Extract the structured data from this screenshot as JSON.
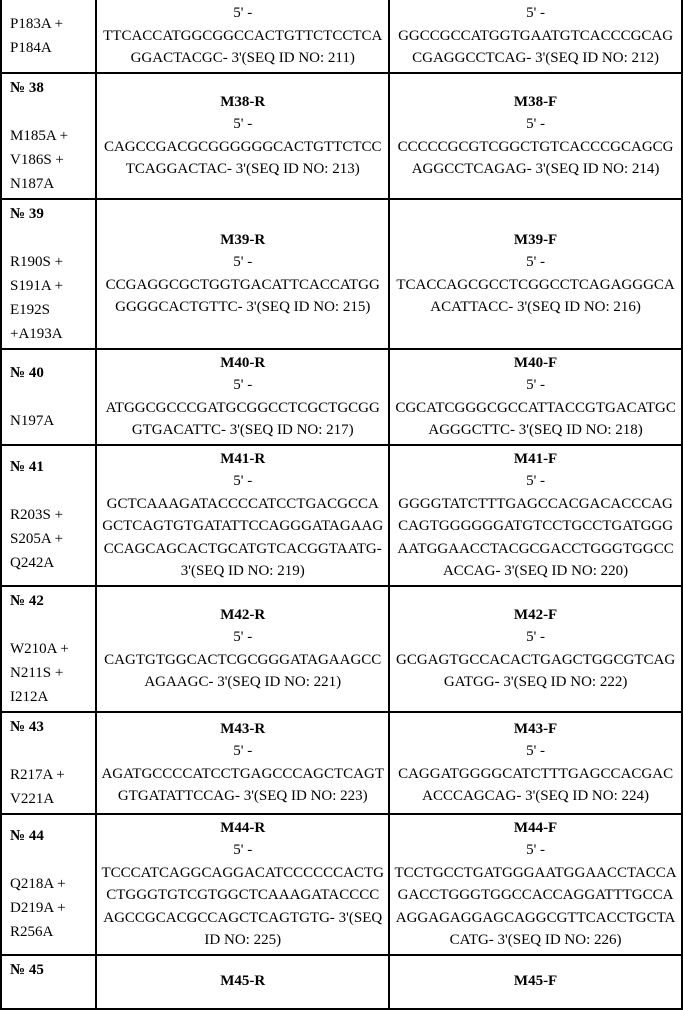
{
  "rows": [
    {
      "left_header": "",
      "left_mut": "P183A +\nP184A",
      "r_name": "",
      "r_five": "5' -",
      "r_seq": "TTCACCATGGCGGCCACTGTTCTCCTCAGGACTACGC- 3'(SEQ ID NO: 211)",
      "f_name": "",
      "f_five": "5' -",
      "f_seq": "GGCCGCCATGGTGAATGTCACCCGCAGCGAGGCCTCAG- 3'(SEQ ID NO: 212)"
    },
    {
      "left_header": "№ 38",
      "left_mut": "M185A +\nV186S +\nN187A",
      "r_name": "M38-R",
      "r_five": "5' -",
      "r_seq": "CAGCCGACGCGGGGGGCACTGTTCTCCTCAGGACTAC- 3'(SEQ ID NO: 213)",
      "f_name": "M38-F",
      "f_five": "5' -",
      "f_seq": "CCCCCGCGTCGGCTGTCACCCGCAGCGAGGCCTCAGAG- 3'(SEQ ID NO: 214)"
    },
    {
      "left_header": "№ 39",
      "left_mut": "R190S +\nS191A +\nE192S\n+A193A",
      "r_name": "M39-R",
      "r_five": "5' -",
      "r_seq": "CCGAGGCGCTGGTGACATTCACCATGGGGGGCACTGTTC- 3'(SEQ ID NO: 215)",
      "f_name": "M39-F",
      "f_five": "5' -",
      "f_seq": "TCACCAGCGCCTCGGCCTCAGAGGGCAACATTACC- 3'(SEQ ID NO: 216)"
    },
    {
      "left_header": "№ 40",
      "left_mut": "N197A",
      "r_name": "M40-R",
      "r_five": "5' -",
      "r_seq": "ATGGCGCCCGATGCGGCCTCGCTGCGGGTGACATTC- 3'(SEQ ID NO: 217)",
      "f_name": "M40-F",
      "f_five": "5' -",
      "f_seq": "CGCATCGGGCGCCATTACCGTGACATGCAGGGCTTC- 3'(SEQ ID NO: 218)"
    },
    {
      "left_header": "№ 41",
      "left_mut": "R203S +\nS205A +\nQ242A",
      "r_name": "M41-R",
      "r_five": "5' -",
      "r_seq": "GCTCAAAGATACCCCATCCTGACGCCAGCTCAGTGTGATATTCCAGGGATAGAAGCCAGCAGCACTGCATGTCACGGTAATG- 3'(SEQ ID NO: 219)",
      "f_name": "M41-F",
      "f_five": "5' -",
      "f_seq": "GGGGTATCTTTGAGCCACGACACCCAGCAGTGGGGGGATGTCCTGCCTGATGGGAATGGAACCTACGCGACCTGGGTGGCCACCAG- 3'(SEQ ID NO: 220)"
    },
    {
      "left_header": "№ 42",
      "left_mut": "W210A +\nN211S +\nI212A",
      "r_name": "M42-R",
      "r_five": "5' -",
      "r_seq": "CAGTGTGGCACTCGCGGGATAGAAGCCAGAAGC- 3'(SEQ ID NO: 221)",
      "f_name": "M42-F",
      "f_five": "5' -",
      "f_seq": "GCGAGTGCCACACTGAGCTGGCGTCAGGATGG- 3'(SEQ ID NO: 222)"
    },
    {
      "left_header": "№ 43",
      "left_mut": "R217A +\nV221A",
      "r_name": "M43-R",
      "r_five": "5' -",
      "r_seq": "AGATGCCCCATCCTGAGCCCAGCTCAGTGTGATATTCCAG- 3'(SEQ ID NO: 223)",
      "f_name": "M43-F",
      "f_five": "5' -",
      "f_seq": "CAGGATGGGGCATCTTTGAGCCACGACACCCAGCAG- 3'(SEQ ID NO: 224)"
    },
    {
      "left_header": "№ 44",
      "left_mut": "Q218A +\nD219A +\nR256A",
      "r_name": "M44-R",
      "r_five": "5' -",
      "r_seq": "TCCCATCAGGCAGGACATCCCCCCACTGCTGGGTGTCGTGGCTCAAAGATACCCCAGCCGCACGCCAGCTCAGTGTG- 3'(SEQ ID NO: 225)",
      "f_name": "M44-F",
      "f_five": "5' -",
      "f_seq": "TCCTGCCTGATGGGAATGGAACCTACCAGACCTGGGTGGCCACCAGGATTTGCCAAGGAGAGGAGCAGGCGTTCACCTGCTACATG- 3'(SEQ ID NO: 226)"
    },
    {
      "left_header": "№ 45",
      "left_mut": "",
      "r_name": "M45-R",
      "r_five": "",
      "r_seq": "",
      "f_name": "M45-F",
      "f_five": "",
      "f_seq": ""
    }
  ]
}
